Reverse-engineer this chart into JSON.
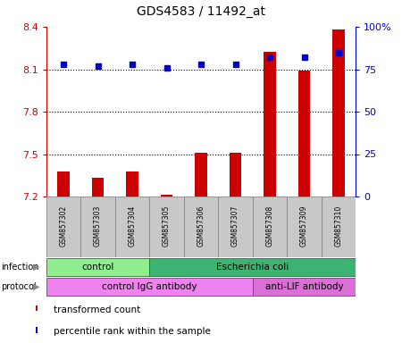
{
  "title": "GDS4583 / 11492_at",
  "samples": [
    "GSM857302",
    "GSM857303",
    "GSM857304",
    "GSM857305",
    "GSM857306",
    "GSM857307",
    "GSM857308",
    "GSM857309",
    "GSM857310"
  ],
  "red_values": [
    7.38,
    7.33,
    7.38,
    7.21,
    7.51,
    7.51,
    8.22,
    8.09,
    8.38
  ],
  "blue_values": [
    78,
    77,
    78,
    76,
    78,
    78,
    82,
    82,
    85
  ],
  "ylim": [
    7.2,
    8.4
  ],
  "y2lim": [
    0,
    100
  ],
  "yticks": [
    7.2,
    7.5,
    7.8,
    8.1,
    8.4
  ],
  "y2ticks": [
    0,
    25,
    50,
    75,
    100
  ],
  "y2ticklabels": [
    "0",
    "25",
    "50",
    "75",
    "100%"
  ],
  "dotted_lines": [
    8.1,
    7.8,
    7.5
  ],
  "infection_labels": [
    {
      "text": "control",
      "start": 0,
      "end": 3,
      "color": "#90EE90"
    },
    {
      "text": "Escherichia coli",
      "start": 3,
      "end": 9,
      "color": "#3CB371"
    }
  ],
  "protocol_labels": [
    {
      "text": "control IgG antibody",
      "start": 0,
      "end": 6,
      "color": "#EE82EE"
    },
    {
      "text": "anti-LIF antibody",
      "start": 6,
      "end": 9,
      "color": "#DA70D6"
    }
  ],
  "legend_items": [
    {
      "label": "transformed count",
      "color": "#CC0000"
    },
    {
      "label": "percentile rank within the sample",
      "color": "#0000CC"
    }
  ],
  "bar_color": "#CC0000",
  "dot_color": "#0000CC",
  "bar_width": 0.35,
  "background_color": "#ffffff",
  "plot_bg": "#ffffff",
  "tick_color_left": "#CC0000",
  "tick_color_right": "#0000CC",
  "sample_bg": "#C8C8C8",
  "sample_border": "#888888"
}
